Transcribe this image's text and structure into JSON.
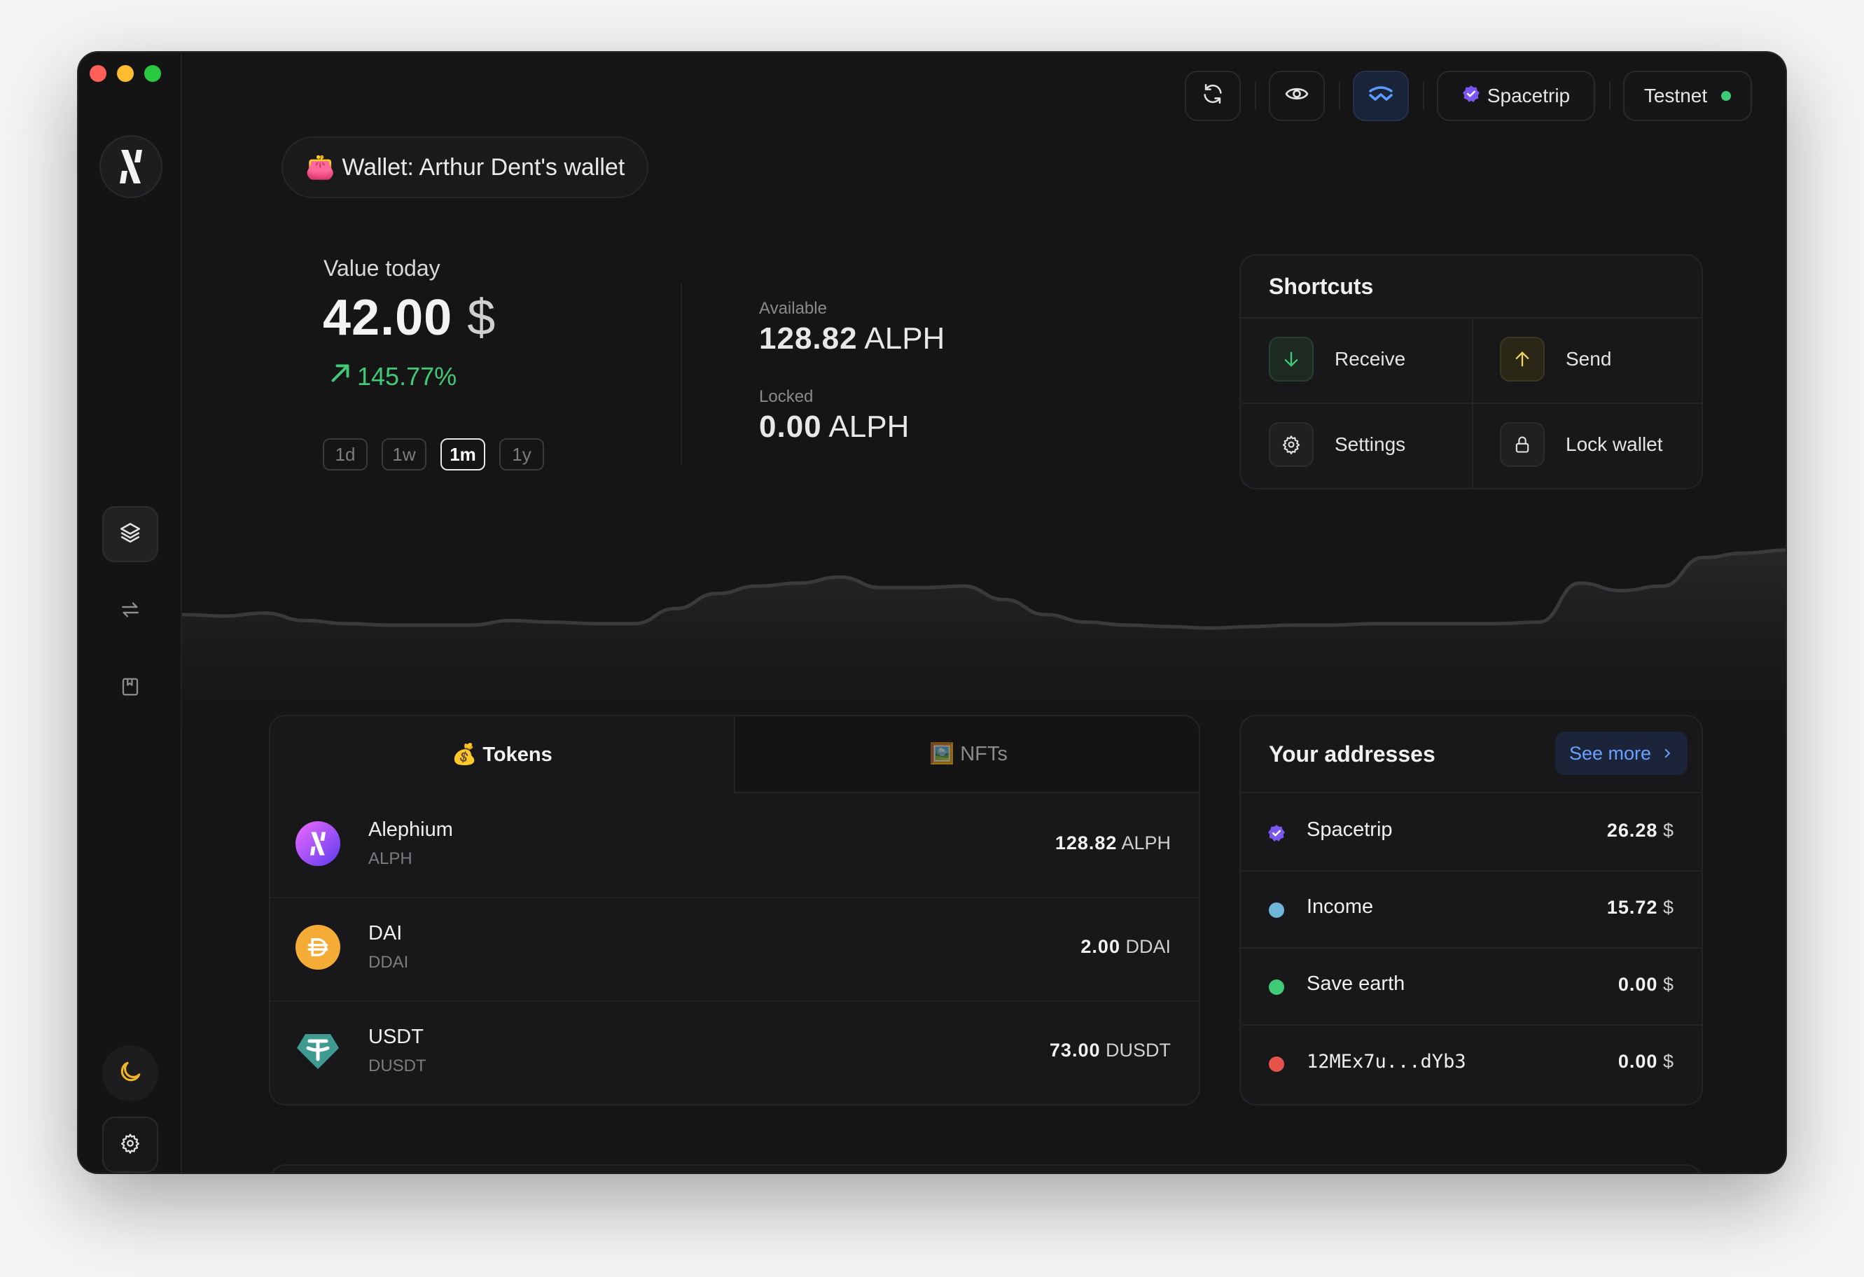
{
  "header": {
    "wallet_connect_label": "WalletConnect",
    "address_label": "Spacetrip",
    "network_label": "Testnet",
    "network_status_color": "#40c977",
    "address_badge_color": "#7b57f2"
  },
  "wallet": {
    "emoji": "👛",
    "label": "Wallet: Arthur Dent's wallet"
  },
  "overview": {
    "value_label": "Value today",
    "value_amount": "42.00",
    "value_currency": "$",
    "change": "145.77%",
    "change_color": "#40c977",
    "periods": [
      "1d",
      "1w",
      "1m",
      "1y"
    ],
    "selected_period": "1m",
    "available_label": "Available",
    "available_amount": "128.82",
    "available_unit": "ALPH",
    "locked_label": "Locked",
    "locked_amount": "0.00",
    "locked_unit": "ALPH"
  },
  "shortcuts": {
    "title": "Shortcuts",
    "items": [
      {
        "label": "Receive",
        "icon": "arrow-down-icon"
      },
      {
        "label": "Send",
        "icon": "arrow-up-icon"
      },
      {
        "label": "Settings",
        "icon": "gear-icon"
      },
      {
        "label": "Lock wallet",
        "icon": "lock-icon"
      }
    ]
  },
  "sidebar": {
    "items": [
      {
        "name": "overview",
        "icon": "layers-icon"
      },
      {
        "name": "transfers",
        "icon": "arrows-exchange-icon"
      },
      {
        "name": "address-book",
        "icon": "book-icon"
      }
    ],
    "theme_icon": "moon-icon",
    "settings_icon": "gear-icon"
  },
  "assets": {
    "tabs": [
      {
        "emoji": "💰",
        "label": "Tokens"
      },
      {
        "emoji": "🖼️",
        "label": "NFTs"
      }
    ],
    "tokens": [
      {
        "name": "Alephium",
        "symbol": "ALPH",
        "amount": "128.82",
        "unit": "ALPH",
        "icon": "alephium-icon"
      },
      {
        "name": "DAI",
        "symbol": "DDAI",
        "amount": "2.00",
        "unit": "DDAI",
        "icon": "dai-icon"
      },
      {
        "name": "USDT",
        "symbol": "DUSDT",
        "amount": "73.00",
        "unit": "DUSDT",
        "icon": "tether-icon"
      }
    ]
  },
  "addresses": {
    "title": "Your addresses",
    "see_more": "See more",
    "items": [
      {
        "name": "Spacetrip",
        "value": "26.28",
        "currency": "$",
        "color": "#7b57f2"
      },
      {
        "name": "Income",
        "value": "15.72",
        "currency": "$",
        "color": "#6fb6d9"
      },
      {
        "name": "Save earth",
        "value": "0.00",
        "currency": "$",
        "color": "#40c977"
      },
      {
        "name": "12MEx7u...dYb3",
        "value": "0.00",
        "currency": "$",
        "color": "#e5534b"
      }
    ]
  },
  "chart_data": {
    "type": "area",
    "series": [
      {
        "values": [
          22,
          21,
          23,
          18,
          16,
          15,
          15,
          15,
          18,
          17,
          16,
          16,
          26,
          36,
          41,
          43,
          47,
          40,
          40,
          41,
          32,
          22,
          17,
          15,
          14,
          13,
          14,
          15,
          15,
          16,
          16,
          16,
          16,
          17,
          43,
          38,
          41,
          60,
          63,
          65
        ]
      }
    ]
  }
}
